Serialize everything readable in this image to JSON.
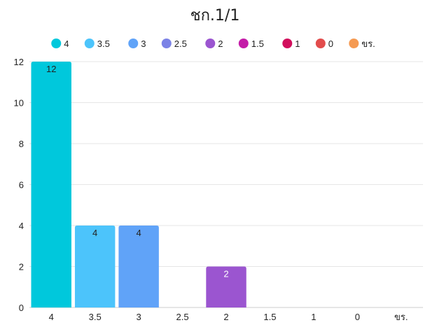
{
  "chart_data": {
    "type": "bar",
    "title": "ชก.1/1",
    "xlabel": "",
    "ylabel": "",
    "categories": [
      "4",
      "3.5",
      "3",
      "2.5",
      "2",
      "1.5",
      "1",
      "0",
      "ขร."
    ],
    "values": [
      12,
      4,
      4,
      0,
      2,
      0,
      0,
      0,
      0
    ],
    "colors": [
      "#00c8dc",
      "#4cc4fb",
      "#60a3f8",
      "#7b82e6",
      "#9b55d0",
      "#c41ca8",
      "#d10f5c",
      "#e24c4c",
      "#f59a52"
    ],
    "ylim": [
      0,
      12
    ],
    "yticks": [
      0,
      2,
      4,
      6,
      8,
      10,
      12
    ],
    "grid": true,
    "legend": {
      "placement": "top-center",
      "entries": [
        "4",
        "3.5",
        "3",
        "2.5",
        "2",
        "1.5",
        "1",
        "0",
        "ขร."
      ]
    },
    "data_labels": [
      "12",
      "4",
      "4",
      "",
      "2",
      "",
      "",
      "",
      ""
    ],
    "data_label_colors": [
      "#222222",
      "#222222",
      "#222222",
      "#222222",
      "#ffffff",
      "#222222",
      "#222222",
      "#222222",
      "#222222"
    ]
  }
}
